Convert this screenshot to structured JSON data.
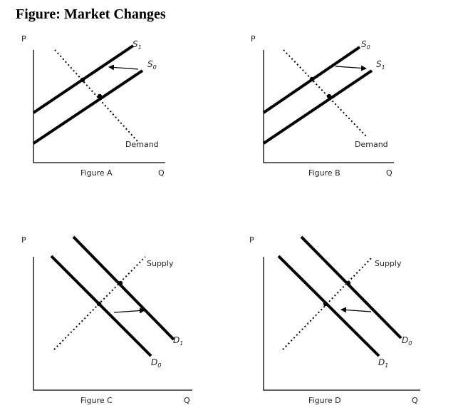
{
  "title": "Figure: Market Changes",
  "panels": {
    "a": {
      "p_label": "P",
      "q_label": "Q",
      "caption": "Figure A",
      "supply_upper": {
        "base": "S",
        "sub": "1"
      },
      "supply_lower": {
        "base": "S",
        "sub": "0"
      },
      "fixed_curve_label": "Demand"
    },
    "b": {
      "p_label": "P",
      "q_label": "Q",
      "caption": "Figure B",
      "supply_upper": {
        "base": "S",
        "sub": "0"
      },
      "supply_lower": {
        "base": "S",
        "sub": "1"
      },
      "fixed_curve_label": "Demand"
    },
    "c": {
      "p_label": "P",
      "q_label": "Q",
      "caption": "Figure C",
      "demand_right": {
        "base": "D",
        "sub": "1"
      },
      "demand_left": {
        "base": "D",
        "sub": "0"
      },
      "fixed_curve_label": "Supply"
    },
    "d": {
      "p_label": "P",
      "q_label": "Q",
      "caption": "Figure D",
      "demand_right": {
        "base": "D",
        "sub": "0"
      },
      "demand_left": {
        "base": "D",
        "sub": "1"
      },
      "fixed_curve_label": "Supply"
    }
  }
}
